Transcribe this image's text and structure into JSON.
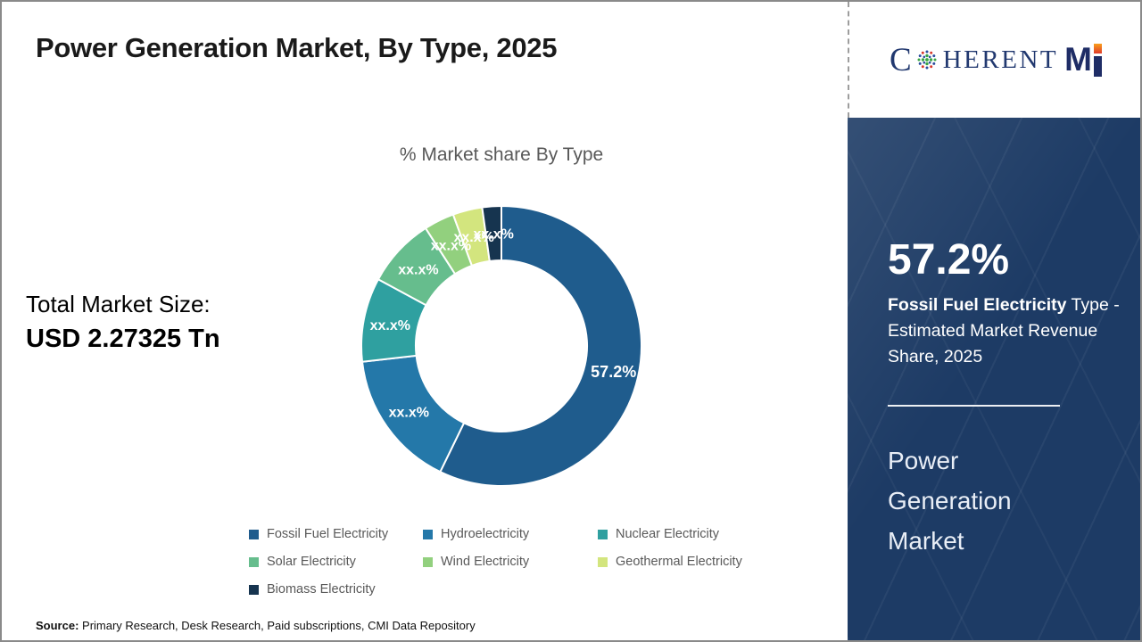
{
  "page": {
    "title": "Power Generation Market, By Type, 2025",
    "source_label": "Source:",
    "source_text": " Primary Research, Desk Research, Paid subscriptions, CMI Data Repository"
  },
  "market_size": {
    "label": "Total Market Size:",
    "value": "USD 2.27325 Tn"
  },
  "chart_data": {
    "type": "pie",
    "subtype": "donut",
    "title": "% Market share By Type",
    "unit": "%",
    "legend_position": "bottom",
    "series": [
      {
        "name": "Fossil Fuel Electricity",
        "label": "57.2%",
        "value": 57.2,
        "color": "#1F5C8D"
      },
      {
        "name": "Hydroelectricity",
        "label": "xx.x%",
        "value": 16.0,
        "color": "#2478A9"
      },
      {
        "name": "Nuclear Electricity",
        "label": "xx.x%",
        "value": 9.7,
        "color": "#2FA0A0"
      },
      {
        "name": "Solar Electricity",
        "label": "xx.x%",
        "value": 8.0,
        "color": "#66BD8D"
      },
      {
        "name": "Wind Electricity",
        "label": "xx.x%",
        "value": 3.5,
        "color": "#92D07E"
      },
      {
        "name": "Geothermal Electricity",
        "label": "xx.x%",
        "value": 3.4,
        "color": "#D3E57E"
      },
      {
        "name": "Biomass Electricity",
        "label": "xx.x%",
        "value": 2.2,
        "color": "#16344F"
      }
    ]
  },
  "side_panel": {
    "headline_value": "57.2%",
    "desc_bold": "Fossil Fuel Electricity",
    "desc_rest": " Type - Estimated Market Revenue Share, 2025",
    "panel_title": "Power Generation Market",
    "background_color": "#1D3B65",
    "text_color": "#FFFFFF"
  },
  "logo": {
    "part_c": "C",
    "part_rest": "HERENT",
    "part_m": "M",
    "navy": "#1F2D66",
    "serif_navy": "#21386F",
    "accent_orange": "#F08222",
    "globe_green": "#3AA547",
    "globe_blue": "#2B4D9E",
    "globe_red": "#D9372A"
  }
}
